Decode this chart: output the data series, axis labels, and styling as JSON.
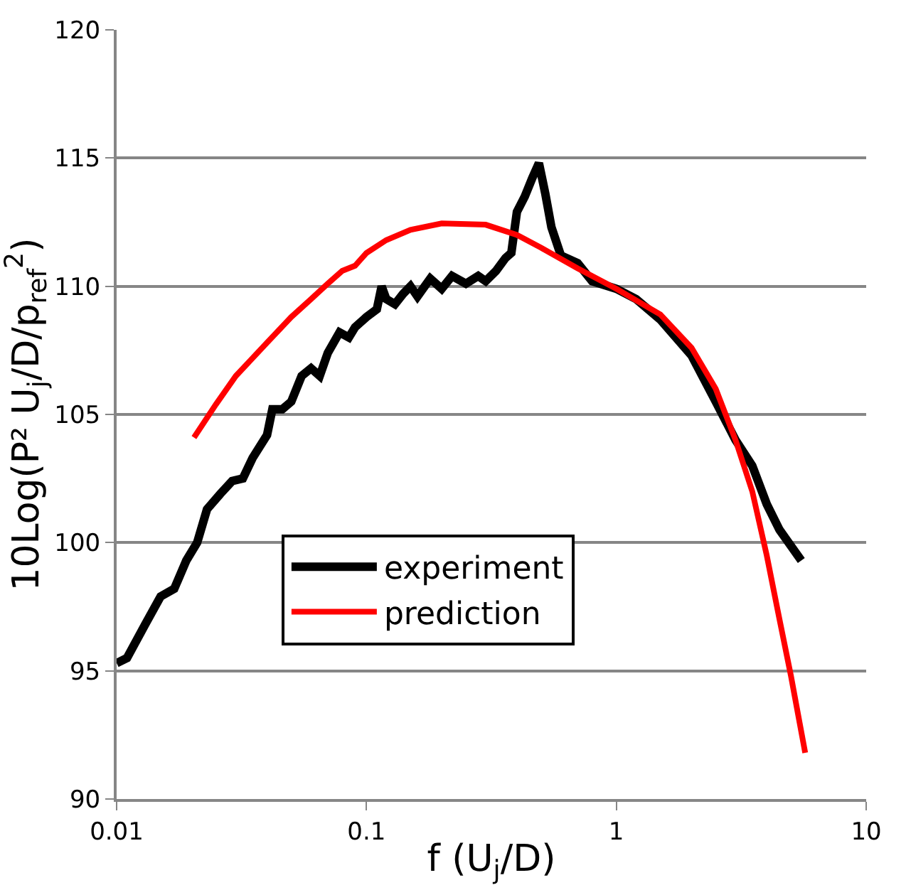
{
  "chart_data": {
    "type": "line",
    "xlabel": "f (U$_{j}$/D)",
    "ylabel": "10Log(P² U$_{j}$/D/p$_{ref}$$^{2}$)",
    "log": "x",
    "xlim": [
      0.01,
      10
    ],
    "xticks": [
      0.01,
      0.1,
      1,
      10
    ],
    "ylim": [
      90,
      120
    ],
    "yticks": [
      90,
      95,
      100,
      105,
      110,
      115,
      120
    ],
    "grid": "y",
    "legend": "bottom",
    "marker": "none",
    "line_style": "solid",
    "series": [
      {
        "name": "experiment",
        "color": "#000000",
        "x": [
          0.01,
          0.011,
          0.013,
          0.015,
          0.017,
          0.019,
          0.021,
          0.023,
          0.026,
          0.029,
          0.032,
          0.035,
          0.04,
          0.042,
          0.046,
          0.05,
          0.055,
          0.06,
          0.065,
          0.07,
          0.078,
          0.085,
          0.09,
          0.1,
          0.11,
          0.115,
          0.12,
          0.13,
          0.14,
          0.15,
          0.16,
          0.18,
          0.2,
          0.22,
          0.25,
          0.28,
          0.3,
          0.33,
          0.36,
          0.38,
          0.4,
          0.43,
          0.46,
          0.49,
          0.52,
          0.55,
          0.6,
          0.7,
          0.8,
          1.0,
          1.2,
          1.5,
          2,
          2.5,
          3,
          3.5,
          4,
          4.5,
          5.5
        ],
        "values": [
          95.3,
          95.5,
          96.8,
          97.9,
          98.2,
          99.3,
          100,
          101.3,
          101.9,
          102.4,
          102.5,
          103.3,
          104.2,
          105.2,
          105.2,
          105.5,
          106.5,
          106.8,
          106.5,
          107.4,
          108.2,
          108,
          108.4,
          108.8,
          109.1,
          110,
          109.5,
          109.3,
          109.7,
          110,
          109.6,
          110.3,
          109.9,
          110.4,
          110.1,
          110.4,
          110.2,
          110.6,
          111.1,
          111.3,
          112.9,
          113.5,
          114.2,
          114.8,
          113.6,
          112.3,
          111.2,
          110.9,
          110.2,
          109.9,
          109.5,
          108.7,
          107.3,
          105.5,
          104,
          103,
          101.5,
          100.5,
          99.3
        ]
      },
      {
        "name": "prediction",
        "color": "#ff0000",
        "x": [
          0.0204,
          0.025,
          0.03,
          0.04,
          0.05,
          0.06,
          0.07,
          0.08,
          0.09,
          0.1,
          0.12,
          0.15,
          0.2,
          0.3,
          0.4,
          0.5,
          0.7,
          1,
          1.5,
          2,
          2.5,
          3,
          3.5,
          4,
          4.5,
          5,
          5.7
        ],
        "values": [
          104.1,
          105.4,
          106.5,
          107.8,
          108.8,
          109.5,
          110.1,
          110.6,
          110.8,
          111.3,
          111.8,
          112.2,
          112.45,
          112.4,
          112,
          111.5,
          110.7,
          109.9,
          108.9,
          107.6,
          106,
          104,
          102,
          99.5,
          97,
          94.8,
          91.8
        ]
      }
    ]
  }
}
